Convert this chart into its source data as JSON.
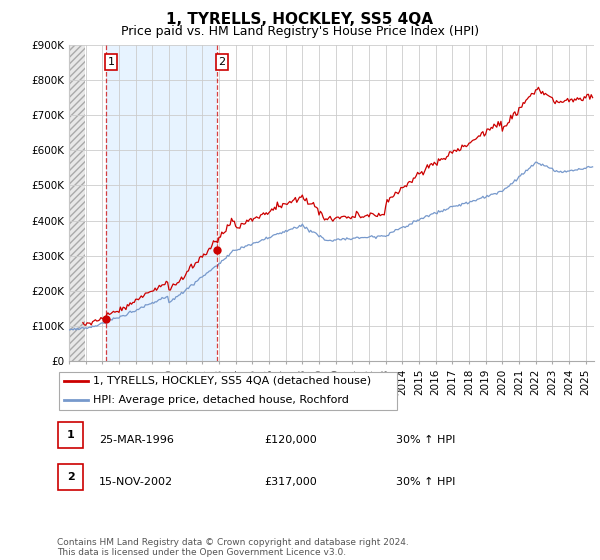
{
  "title": "1, TYRELLS, HOCKLEY, SS5 4QA",
  "subtitle": "Price paid vs. HM Land Registry's House Price Index (HPI)",
  "ylim": [
    0,
    900000
  ],
  "xlim_left": 1994.0,
  "xlim_right": 2025.5,
  "yticks": [
    0,
    100000,
    200000,
    300000,
    400000,
    500000,
    600000,
    700000,
    800000,
    900000
  ],
  "ytick_labels": [
    "£0",
    "£100K",
    "£200K",
    "£300K",
    "£400K",
    "£500K",
    "£600K",
    "£700K",
    "£800K",
    "£900K"
  ],
  "xticks": [
    1994,
    1995,
    1996,
    1997,
    1998,
    1999,
    2000,
    2001,
    2002,
    2003,
    2004,
    2005,
    2006,
    2007,
    2008,
    2009,
    2010,
    2011,
    2012,
    2013,
    2014,
    2015,
    2016,
    2017,
    2018,
    2019,
    2020,
    2021,
    2022,
    2023,
    2024,
    2025
  ],
  "sale1_year": 1996.22,
  "sale1_price": 120000,
  "sale2_year": 2002.88,
  "sale2_price": 317000,
  "hatch_end": 1994.95,
  "line_color_sold": "#cc0000",
  "line_color_hpi": "#7799cc",
  "marker_color": "#cc0000",
  "grid_color": "#cccccc",
  "hatch_face_color": "#e0e0e0",
  "between_sales_color": "#ddeeff",
  "legend_sold_label": "1, TYRELLS, HOCKLEY, SS5 4QA (detached house)",
  "legend_hpi_label": "HPI: Average price, detached house, Rochford",
  "table_row1": [
    "1",
    "25-MAR-1996",
    "£120,000",
    "30% ↑ HPI"
  ],
  "table_row2": [
    "2",
    "15-NOV-2002",
    "£317,000",
    "30% ↑ HPI"
  ],
  "footnote": "Contains HM Land Registry data © Crown copyright and database right 2024.\nThis data is licensed under the Open Government Licence v3.0.",
  "title_fontsize": 11,
  "subtitle_fontsize": 9,
  "tick_fontsize": 7.5,
  "legend_fontsize": 8,
  "table_fontsize": 8,
  "footnote_fontsize": 6.5
}
